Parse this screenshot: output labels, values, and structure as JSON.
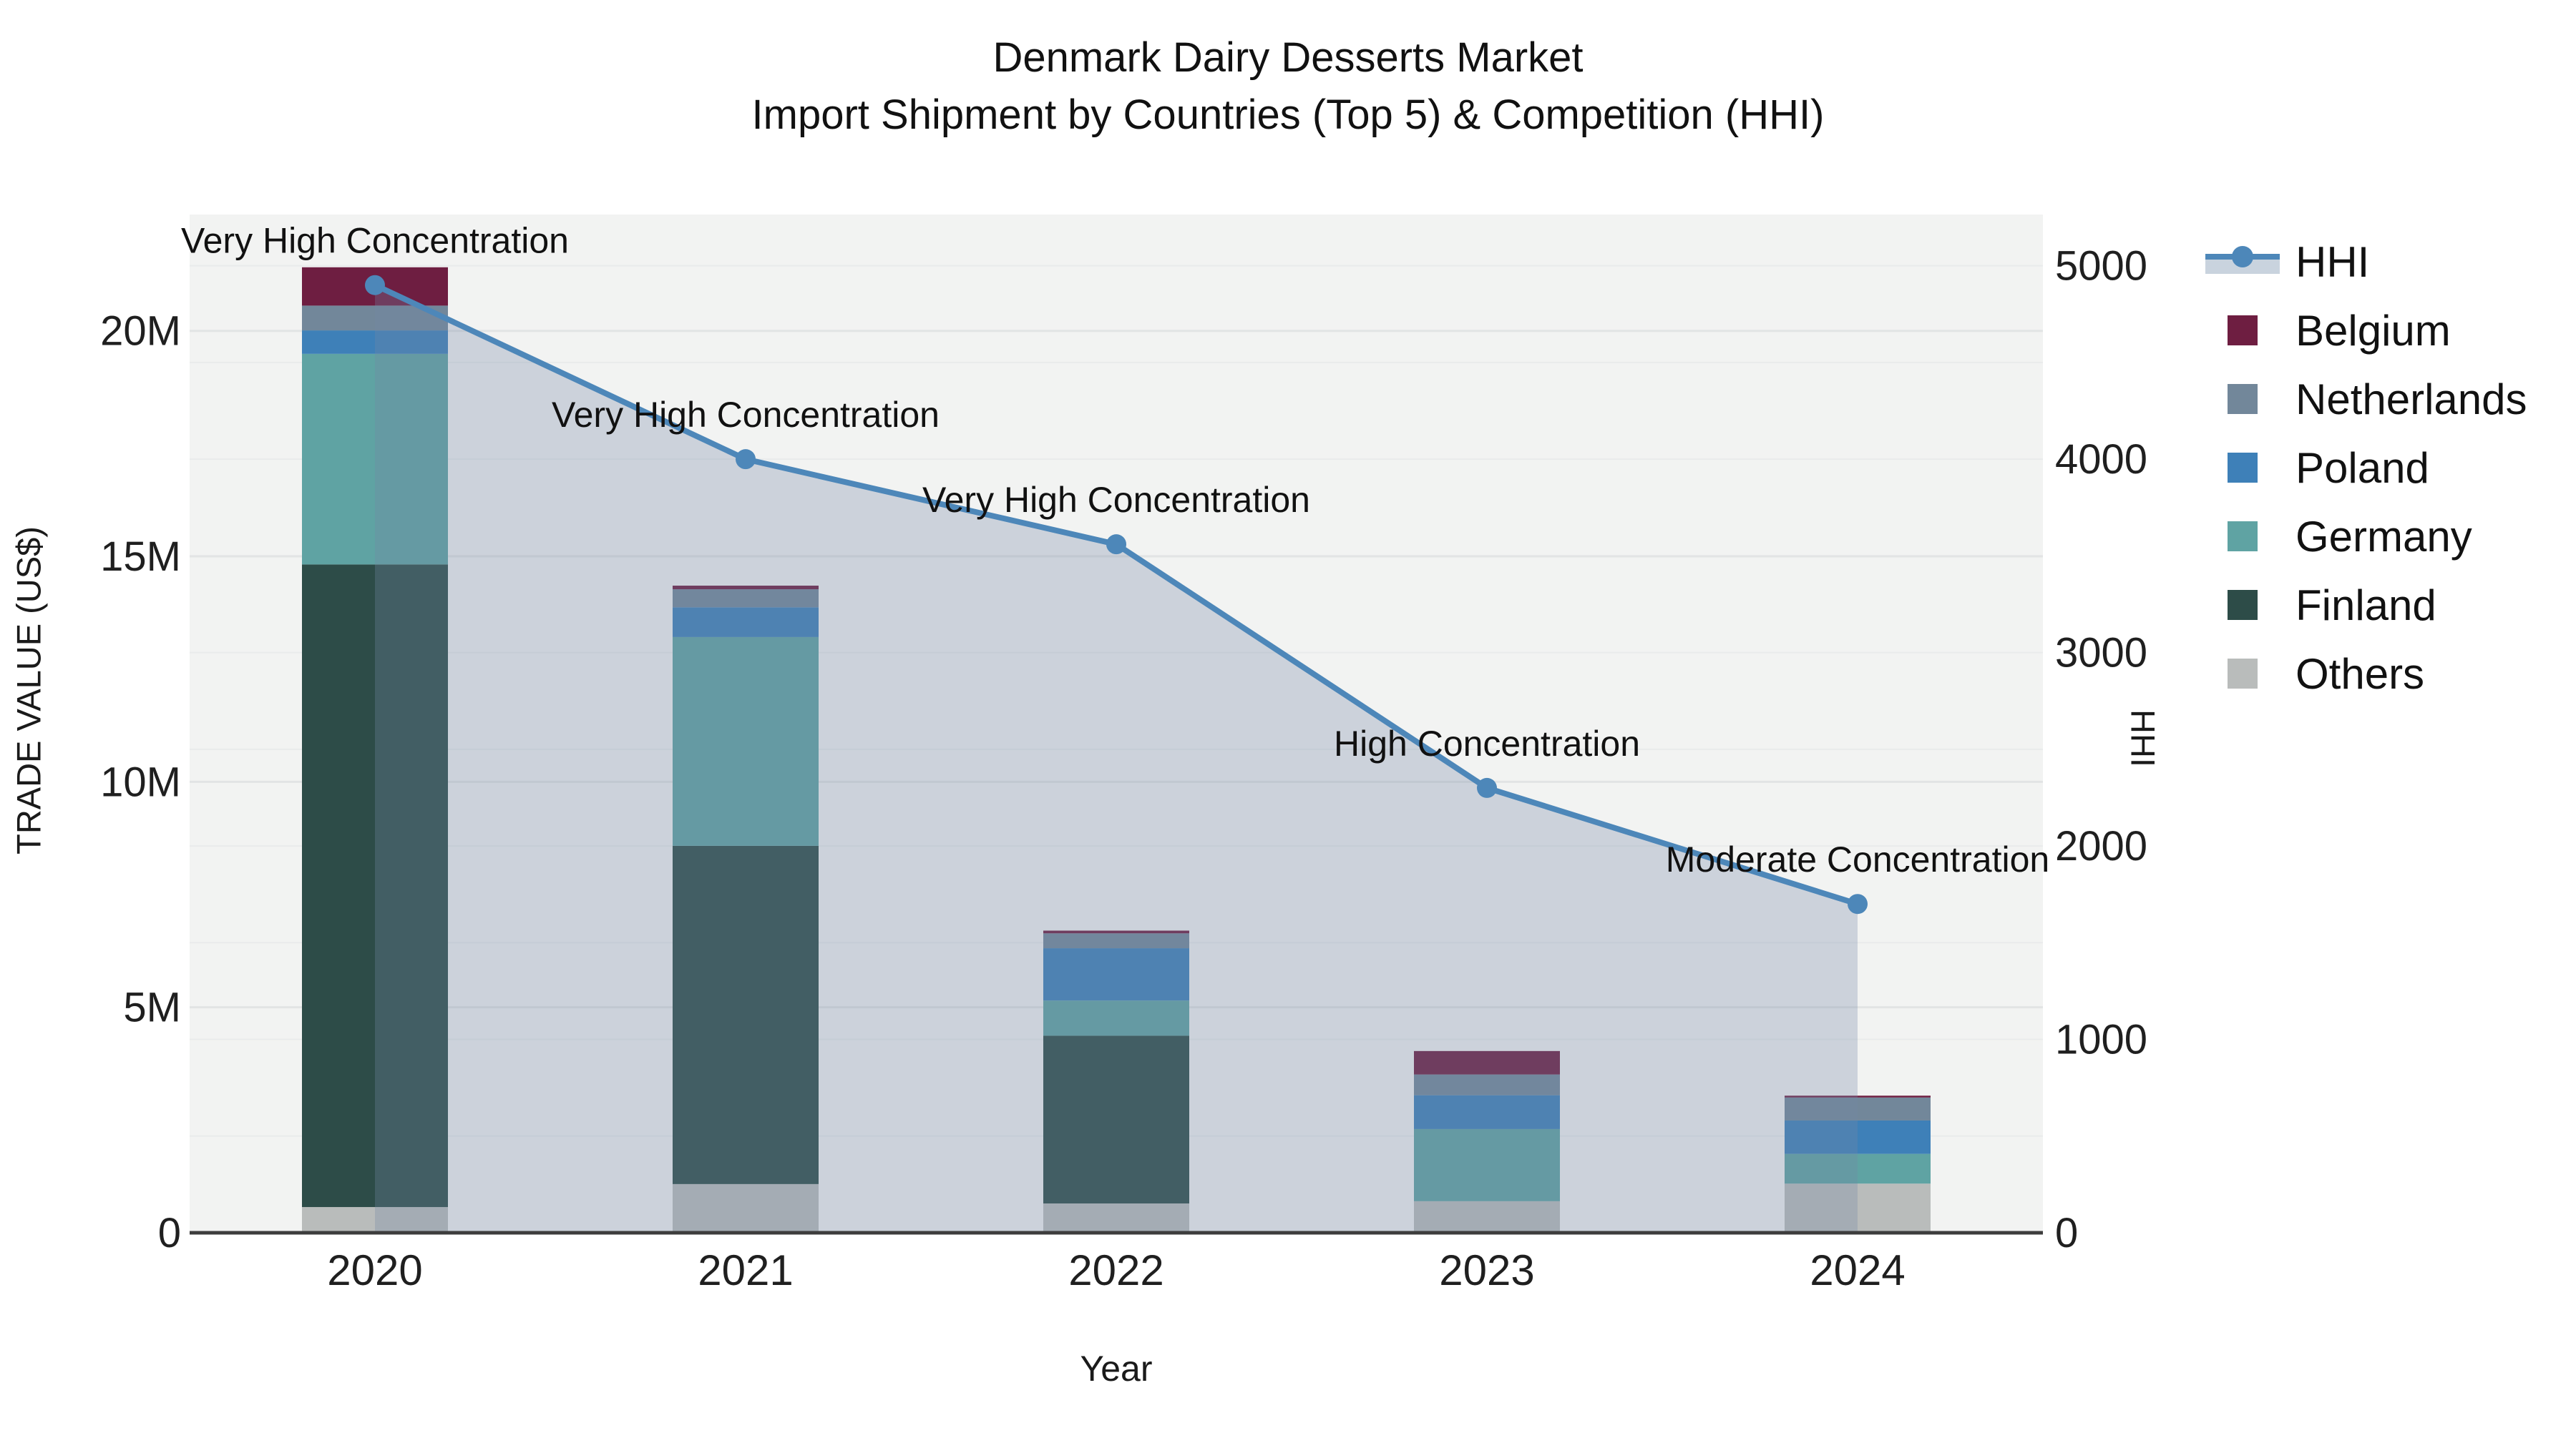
{
  "title": {
    "line1": "Denmark Dairy Desserts Market",
    "line2": "Import Shipment by Countries (Top 5) & Competition (HHI)"
  },
  "axes": {
    "xlabel": "Year",
    "ylabel_left": "TRADE VALUE (US$)",
    "ylabel_right": "HHI",
    "yticks_left_labels": [
      "0",
      "5M",
      "10M",
      "15M",
      "20M"
    ],
    "yticks_left_values": [
      0,
      5,
      10,
      15,
      20
    ],
    "yticks_right_labels": [
      "0",
      "1000",
      "2000",
      "3000",
      "4000",
      "5000"
    ],
    "yticks_right_values": [
      0,
      1000,
      2000,
      3000,
      4000,
      5000
    ]
  },
  "chart_data": {
    "type": "combo-stacked-bar-line",
    "title": "Denmark Dairy Desserts Market — Import Shipment by Countries (Top 5) & Competition (HHI)",
    "categories": [
      "2020",
      "2021",
      "2022",
      "2023",
      "2024"
    ],
    "xlabel": "Year",
    "ylabel": "TRADE VALUE (US$)",
    "ylabel_right": "HHI",
    "ylim_left_millions": [
      0,
      22.58
    ],
    "ylim_right_hhi": [
      0,
      5265
    ],
    "grid": true,
    "legend_position": "right",
    "unit_note": "bar values in millions of US$",
    "series": [
      {
        "name": "Others",
        "type": "bar",
        "color": "#b9bcbb",
        "values": [
          0.57,
          1.08,
          0.65,
          0.7,
          1.09
        ]
      },
      {
        "name": "Finland",
        "type": "bar",
        "color": "#2d4c48",
        "values": [
          14.25,
          7.5,
          3.72,
          0.0,
          0.0
        ]
      },
      {
        "name": "Germany",
        "type": "bar",
        "color": "#5fa3a3",
        "values": [
          4.67,
          4.63,
          0.78,
          1.6,
          0.66
        ]
      },
      {
        "name": "Poland",
        "type": "bar",
        "color": "#3e80b8",
        "values": [
          0.52,
          0.66,
          1.16,
          0.75,
          0.74
        ]
      },
      {
        "name": "Netherlands",
        "type": "bar",
        "color": "#72879a",
        "values": [
          0.55,
          0.4,
          0.33,
          0.46,
          0.51
        ]
      },
      {
        "name": "Belgium",
        "type": "bar",
        "color": "#6e1e41",
        "values": [
          0.85,
          0.08,
          0.06,
          0.52,
          0.04
        ]
      }
    ],
    "bar_totals_millions": [
      21.41,
      14.35,
      6.7,
      4.03,
      3.04
    ],
    "line_series": {
      "name": "HHI",
      "type": "line",
      "color": "#4d87b9",
      "fill_color": "rgba(115,136,166,0.30)",
      "values": [
        4900,
        4000,
        3560,
        2300,
        1700
      ]
    },
    "annotations": [
      {
        "category": "2020",
        "text": "Very High Concentration"
      },
      {
        "category": "2021",
        "text": "Very High Concentration"
      },
      {
        "category": "2022",
        "text": "Very High Concentration"
      },
      {
        "category": "2023",
        "text": "High Concentration"
      },
      {
        "category": "2024",
        "text": "Moderate Concentration"
      }
    ]
  },
  "legend": {
    "items": [
      {
        "label": "HHI",
        "type": "line",
        "color": "#4d87b9",
        "band_color": "#c9d3de"
      },
      {
        "label": "Belgium",
        "type": "swatch",
        "color": "#6e1e41"
      },
      {
        "label": "Netherlands",
        "type": "swatch",
        "color": "#72879a"
      },
      {
        "label": "Poland",
        "type": "swatch",
        "color": "#3e80b8"
      },
      {
        "label": "Germany",
        "type": "swatch",
        "color": "#5fa3a3"
      },
      {
        "label": "Finland",
        "type": "swatch",
        "color": "#2d4c48"
      },
      {
        "label": "Others",
        "type": "swatch",
        "color": "#b9bcbb"
      }
    ]
  },
  "colors": {
    "plot_background": "#f2f3f2",
    "gridline_major": "#e2e4e4",
    "gridline_minor": "#e9ebeb",
    "axis_line": "#3d3d3d",
    "tick_text": "#1f1f1f",
    "annotation_text": "#111111"
  }
}
